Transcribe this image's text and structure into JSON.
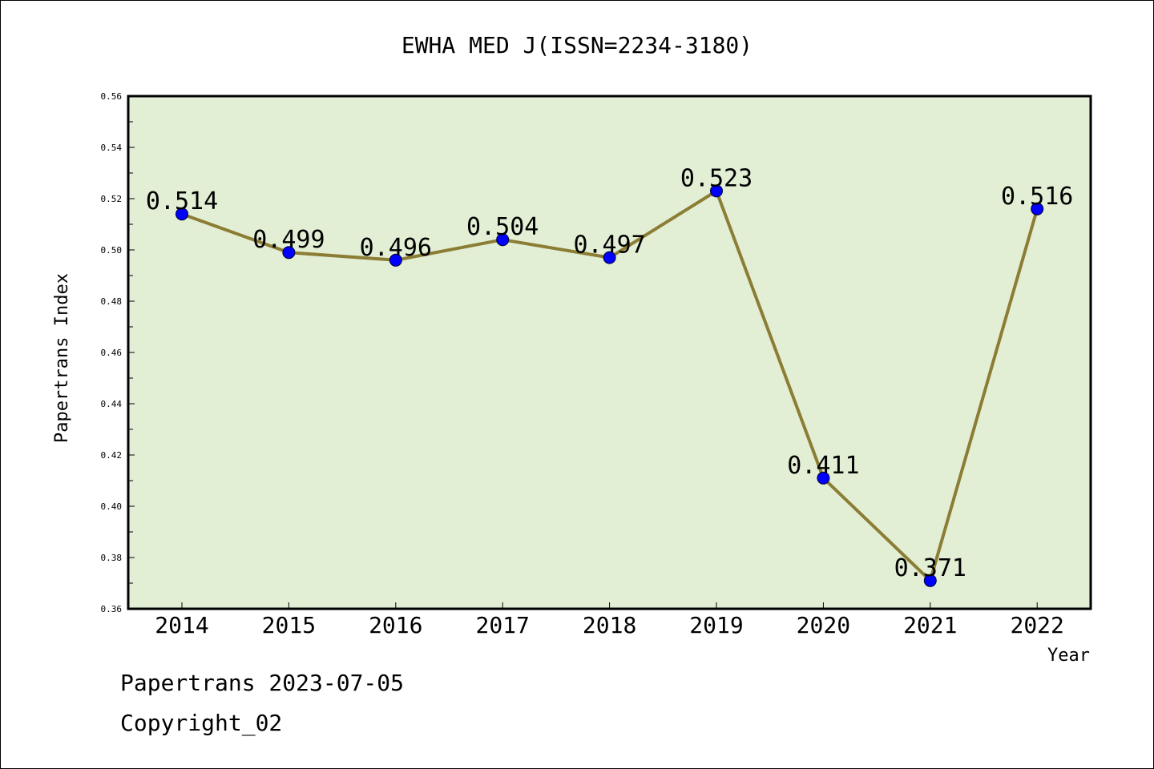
{
  "chart_data": {
    "type": "line",
    "title": "EWHA MED J(ISSN=2234-3180)",
    "xlabel": "Year",
    "ylabel": "Papertrans Index",
    "categories": [
      "2014",
      "2015",
      "2016",
      "2017",
      "2018",
      "2019",
      "2020",
      "2021",
      "2022"
    ],
    "values": [
      0.514,
      0.499,
      0.496,
      0.504,
      0.497,
      0.523,
      0.411,
      0.371,
      0.516
    ],
    "value_labels": [
      "0.514",
      "0.499",
      "0.496",
      "0.504",
      "0.497",
      "0.523",
      "0.411",
      "0.371",
      "0.516"
    ],
    "ylim": [
      0.36,
      0.56
    ],
    "yticks": [
      "0.36",
      "0.38",
      "0.40",
      "0.42",
      "0.44",
      "0.46",
      "0.48",
      "0.50",
      "0.52",
      "0.54",
      "0.56"
    ],
    "grid": false,
    "colors": {
      "plot_background": "#e2efd5",
      "line": "#8c7d35",
      "marker": "#0000ff"
    }
  },
  "footer": {
    "date_line": "Papertrans 2023-07-05",
    "copyright": "Copyright_02"
  }
}
